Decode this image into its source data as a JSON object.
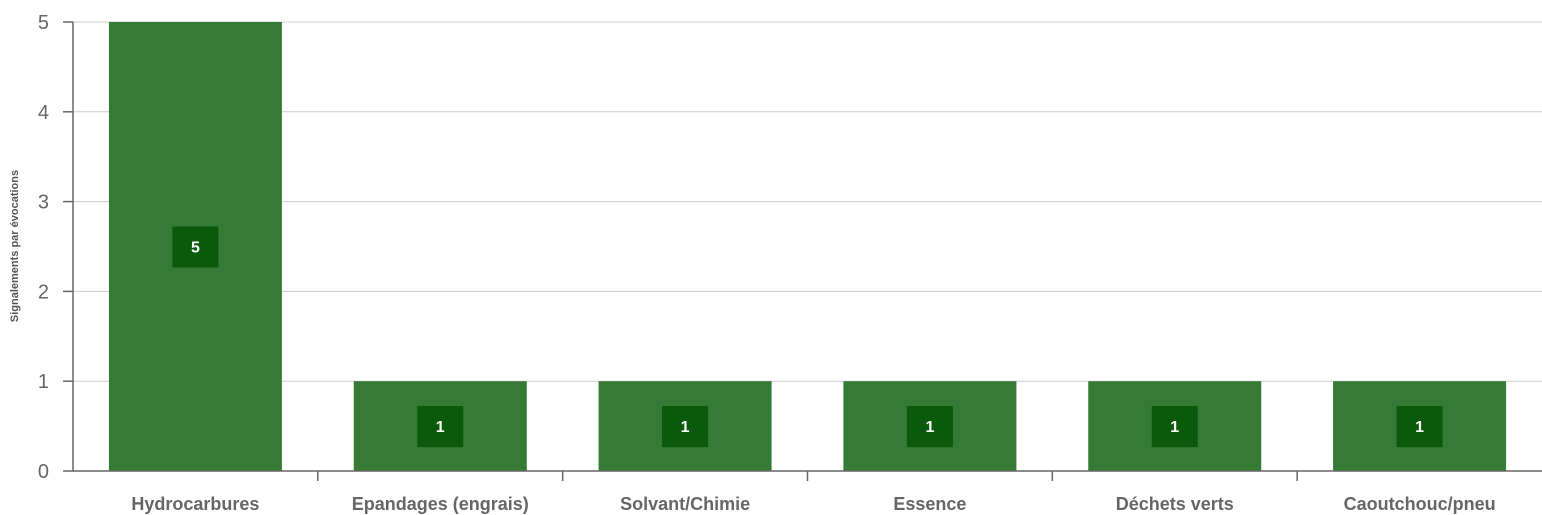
{
  "chart_data": {
    "type": "bar",
    "title": "",
    "xlabel": "",
    "ylabel": "Signalements par évocations",
    "categories": [
      "Hydrocarbures",
      "Epandages (engrais)",
      "Solvant/Chimie",
      "Essence",
      "Déchets verts",
      "Caoutchouc/pneu"
    ],
    "values": [
      5,
      1,
      1,
      1,
      1,
      1
    ],
    "ylim": [
      0,
      5
    ],
    "yticks": [
      0,
      1,
      2,
      3,
      4,
      5
    ],
    "grid": true,
    "legend": "none",
    "data_labels": true
  },
  "colors": {
    "bar": "#357a35",
    "value_label_background": "#0b5a0b",
    "value_label_text": "#ffffff",
    "gridline": "#cccccc",
    "axis": "#666666",
    "tick_label": "#666666"
  }
}
